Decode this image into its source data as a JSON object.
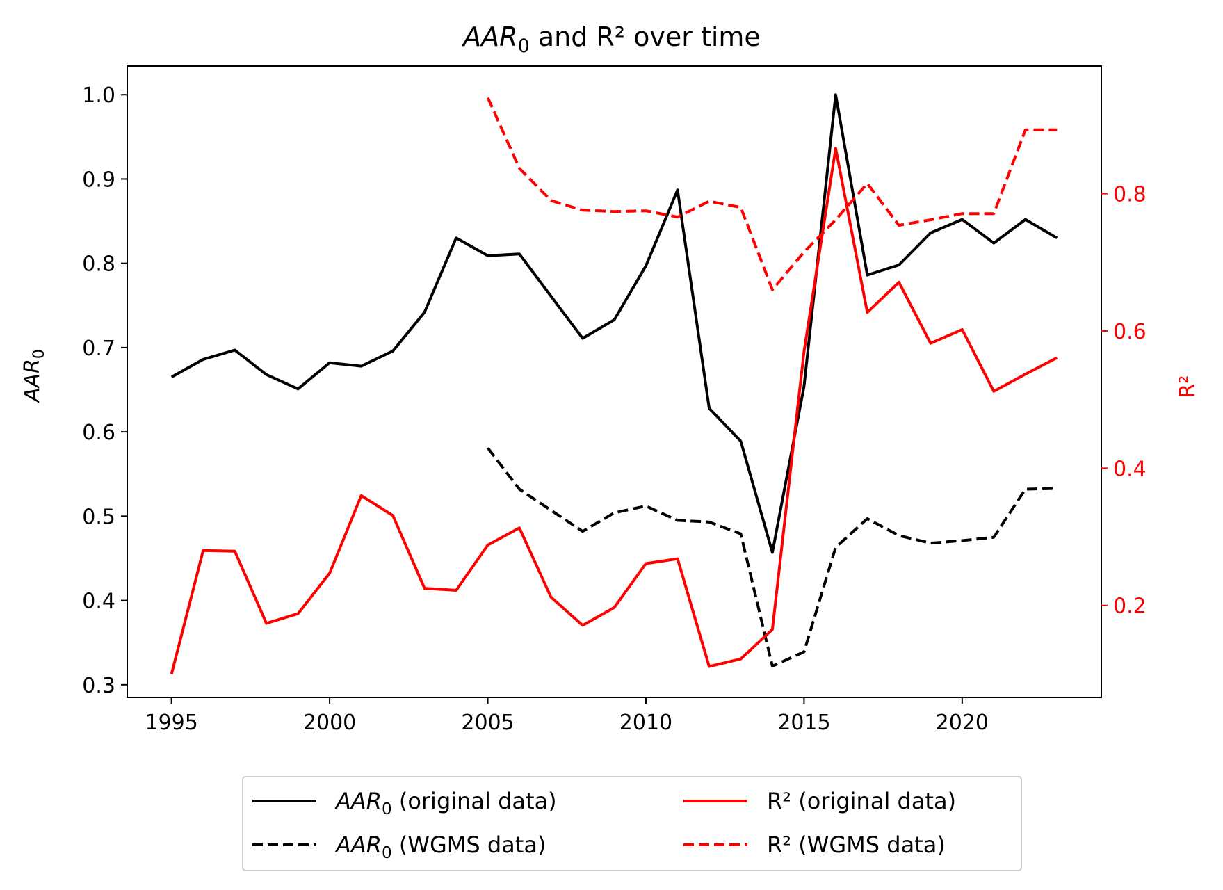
{
  "chart_data": {
    "type": "line",
    "title_italic": "AAR",
    "title_sub": "0",
    "title_rest": " and R² over time",
    "ylabel_italic": "AAR",
    "ylabel_sub": "0",
    "y2label": "R²",
    "xlim": [
      1993.6,
      2024.4
    ],
    "ylim": [
      0.285,
      1.034
    ],
    "y2lim": [
      0.066,
      0.986
    ],
    "x_ticks": [
      1995,
      2000,
      2005,
      2010,
      2015,
      2020
    ],
    "x_tick_labels": [
      "1995",
      "2000",
      "2005",
      "2010",
      "2015",
      "2020"
    ],
    "y_ticks": [
      0.3,
      0.4,
      0.5,
      0.6,
      0.7,
      0.8,
      0.9,
      1.0
    ],
    "y_tick_labels": [
      "0.3",
      "0.4",
      "0.5",
      "0.6",
      "0.7",
      "0.8",
      "0.9",
      "1.0"
    ],
    "y2_ticks": [
      0.2,
      0.4,
      0.6,
      0.8
    ],
    "y2_tick_labels": [
      "0.2",
      "0.4",
      "0.6",
      "0.8"
    ],
    "grid": false,
    "legend_position": "bottom-center, below plot",
    "colors": {
      "aar": "#000000",
      "r2": "#ff0000"
    },
    "series": [
      {
        "name_italic": "AAR",
        "name_sub": "0",
        "name_rest": " (original data)",
        "axis": "left",
        "color": "#000000",
        "dash": false,
        "x": [
          1995,
          1996,
          1997,
          1998,
          1999,
          2000,
          2001,
          2002,
          2003,
          2004,
          2005,
          2006,
          2007,
          2008,
          2009,
          2010,
          2011,
          2012,
          2013,
          2014,
          2015,
          2016,
          2017,
          2018,
          2019,
          2020,
          2021,
          2022,
          2023
        ],
        "y": [
          0.665,
          0.686,
          0.697,
          0.668,
          0.651,
          0.682,
          0.678,
          0.696,
          0.742,
          0.83,
          0.809,
          0.811,
          0.761,
          0.711,
          0.733,
          0.797,
          0.887,
          0.628,
          0.589,
          0.457,
          0.654,
          1.0,
          0.786,
          0.798,
          0.836,
          0.852,
          0.824,
          0.852,
          0.83
        ]
      },
      {
        "name_italic": "AAR",
        "name_sub": "0",
        "name_rest": " (WGMS data)",
        "axis": "left",
        "color": "#000000",
        "dash": true,
        "x": [
          2005,
          2006,
          2007,
          2008,
          2009,
          2010,
          2011,
          2012,
          2013,
          2014,
          2015,
          2016,
          2017,
          2018,
          2019,
          2020,
          2021,
          2022,
          2023
        ],
        "y": [
          0.581,
          0.532,
          0.507,
          0.482,
          0.504,
          0.512,
          0.495,
          0.493,
          0.479,
          0.322,
          0.339,
          0.463,
          0.497,
          0.477,
          0.468,
          0.471,
          0.475,
          0.532,
          0.533
        ]
      },
      {
        "name_italic": "",
        "name_sub": "",
        "name_rest": "R² (original data)",
        "axis": "right",
        "color": "#ff0000",
        "dash": false,
        "x": [
          1995,
          1996,
          1997,
          1998,
          1999,
          2000,
          2001,
          2002,
          2003,
          2004,
          2005,
          2006,
          2007,
          2008,
          2009,
          2010,
          2011,
          2012,
          2013,
          2014,
          2015,
          2016,
          2017,
          2018,
          2019,
          2020,
          2021,
          2022,
          2023
        ],
        "y": [
          0.1,
          0.28,
          0.279,
          0.174,
          0.188,
          0.247,
          0.36,
          0.331,
          0.225,
          0.222,
          0.288,
          0.313,
          0.212,
          0.171,
          0.197,
          0.261,
          0.268,
          0.111,
          0.122,
          0.165,
          0.57,
          0.866,
          0.627,
          0.671,
          0.582,
          0.602,
          0.512,
          0.537,
          0.561
        ]
      },
      {
        "name_italic": "",
        "name_sub": "",
        "name_rest": "R² (WGMS data)",
        "axis": "right",
        "color": "#ff0000",
        "dash": true,
        "x": [
          2005,
          2006,
          2007,
          2008,
          2009,
          2010,
          2011,
          2012,
          2013,
          2014,
          2015,
          2016,
          2017,
          2018,
          2019,
          2020,
          2021,
          2022,
          2023
        ],
        "y": [
          0.94,
          0.837,
          0.79,
          0.776,
          0.774,
          0.775,
          0.766,
          0.789,
          0.78,
          0.66,
          0.715,
          0.762,
          0.815,
          0.754,
          0.762,
          0.771,
          0.771,
          0.893,
          0.893
        ]
      }
    ]
  }
}
